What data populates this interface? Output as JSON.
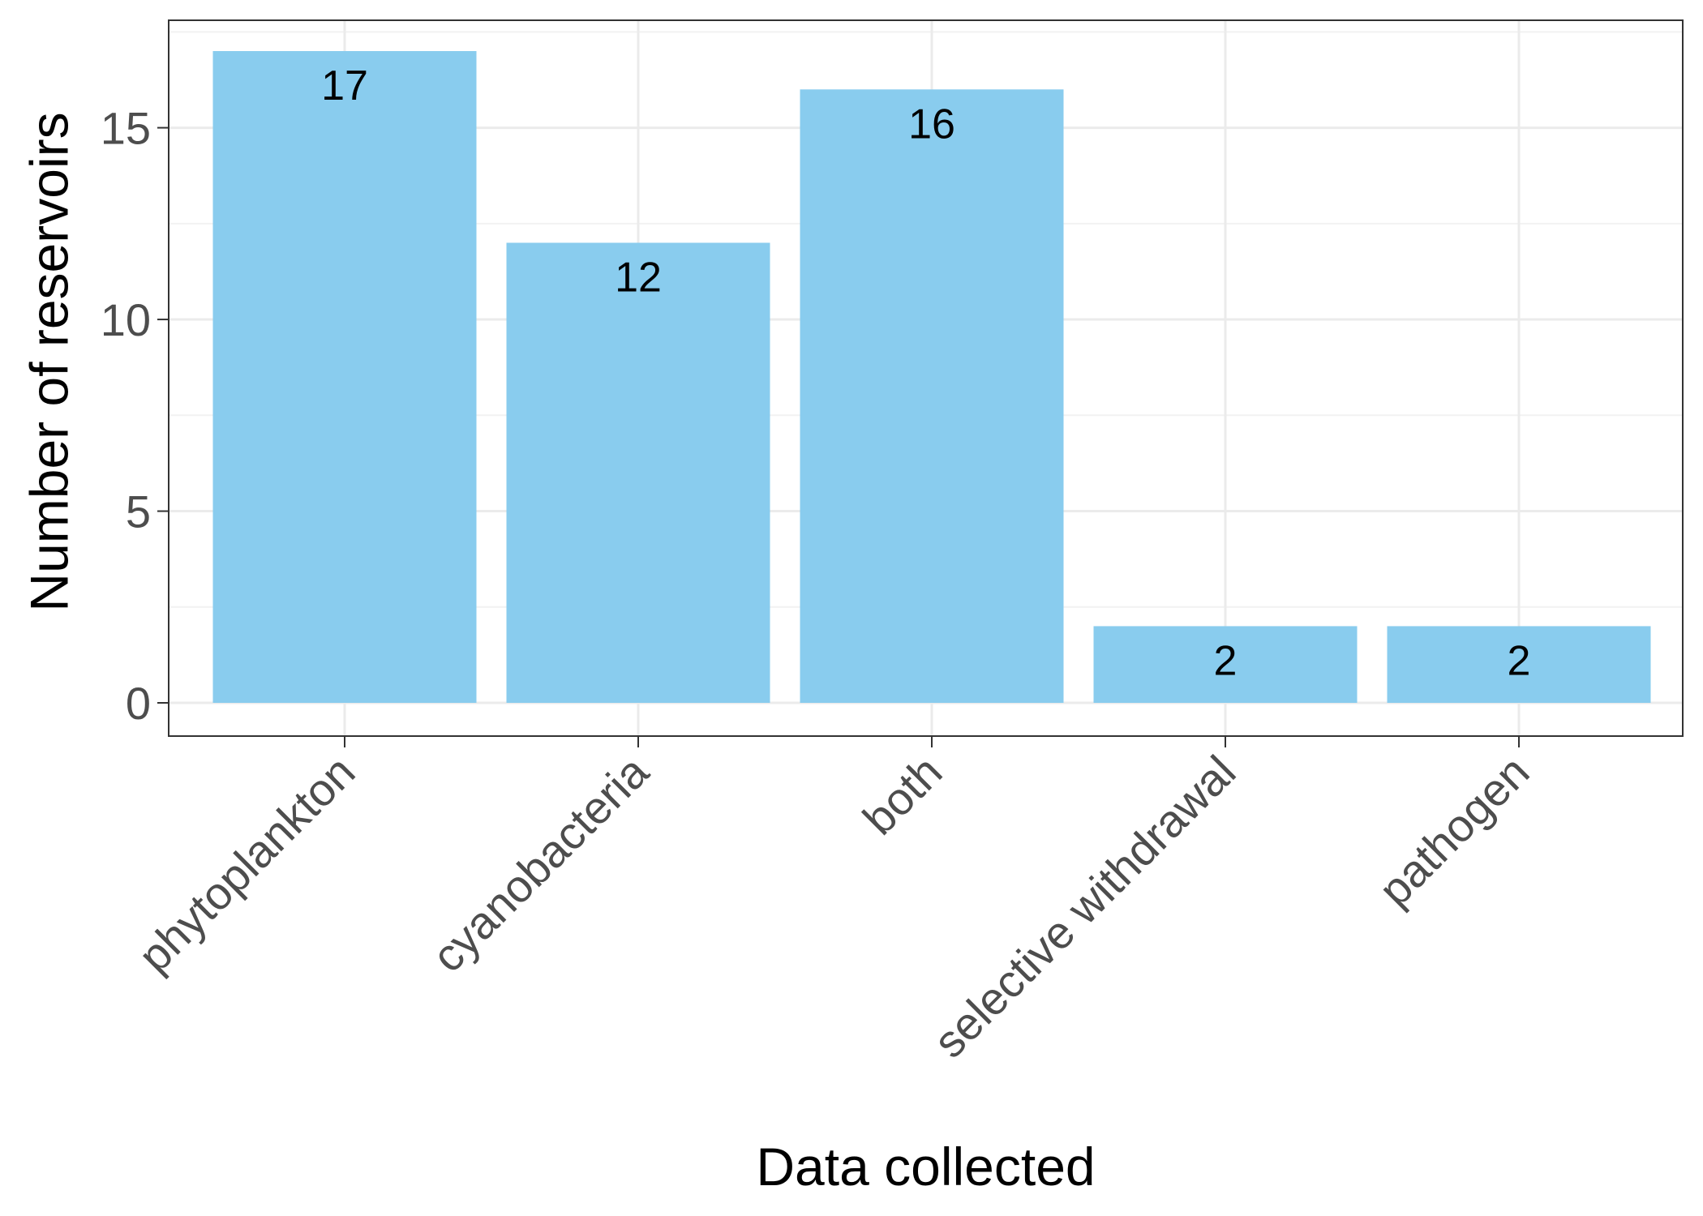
{
  "chart_data": {
    "type": "bar",
    "title": "",
    "xlabel": "Data collected",
    "ylabel": "Number of reservoirs",
    "categories": [
      "phytoplankton",
      "cyanobacteria",
      "both",
      "selective withdrawal",
      "pathogen"
    ],
    "values": [
      17,
      12,
      16,
      2,
      2
    ],
    "ylim": [
      0,
      17.85
    ],
    "yticks": [
      0,
      5,
      10,
      15
    ],
    "ytick_labels": [
      "0",
      "5",
      "10",
      "15"
    ],
    "data_labels": [
      "17",
      "12",
      "16",
      "2",
      "2"
    ],
    "grid": true,
    "legend": "none",
    "colors": {
      "bar": "#89CCEE",
      "grid_major": "#EBEBEB",
      "grid_minor": "#F2F2F2",
      "panel_border": "#333333",
      "tick_text": "#4D4D4D",
      "label_text": "#000000"
    }
  }
}
